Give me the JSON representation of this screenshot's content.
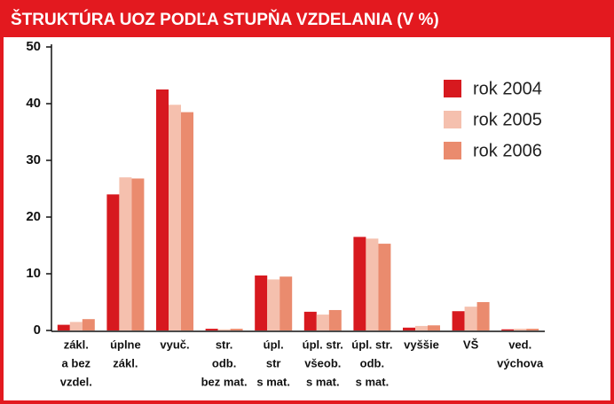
{
  "chart_data": {
    "type": "bar",
    "title": "ŠTRUKTÚRA UOZ PODĽA STUPŇA VZDELANIA (V %)",
    "categories": [
      [
        "zákl.",
        "a bez",
        "vzdel."
      ],
      [
        "úplne",
        "zákl."
      ],
      [
        "vyuč."
      ],
      [
        "str.",
        "odb.",
        "bez mat."
      ],
      [
        "úpl.",
        "str",
        "s mat."
      ],
      [
        "úpl. str.",
        "všeob.",
        "s mat."
      ],
      [
        "úpl. str.",
        "odb.",
        "s mat."
      ],
      [
        "vyššie"
      ],
      [
        "VŠ"
      ],
      [
        "ved.",
        "výchova"
      ]
    ],
    "series": [
      {
        "name": "rok 2004",
        "color": "#d7191f",
        "values": [
          1.0,
          24.0,
          42.5,
          0.3,
          9.7,
          3.3,
          16.5,
          0.5,
          3.4,
          0.2
        ]
      },
      {
        "name": "rok 2005",
        "color": "#f5c0ae",
        "values": [
          1.5,
          27.0,
          39.8,
          0.2,
          9.0,
          2.8,
          16.2,
          0.8,
          4.2,
          0.3
        ]
      },
      {
        "name": "rok 2006",
        "color": "#ea8b6e",
        "values": [
          2.0,
          26.8,
          38.5,
          0.3,
          9.5,
          3.6,
          15.3,
          0.9,
          5.0,
          0.3
        ]
      }
    ],
    "ylim": [
      0,
      50
    ],
    "yticks": [
      0,
      10,
      20,
      30,
      40,
      50
    ],
    "legend": "upper right"
  }
}
